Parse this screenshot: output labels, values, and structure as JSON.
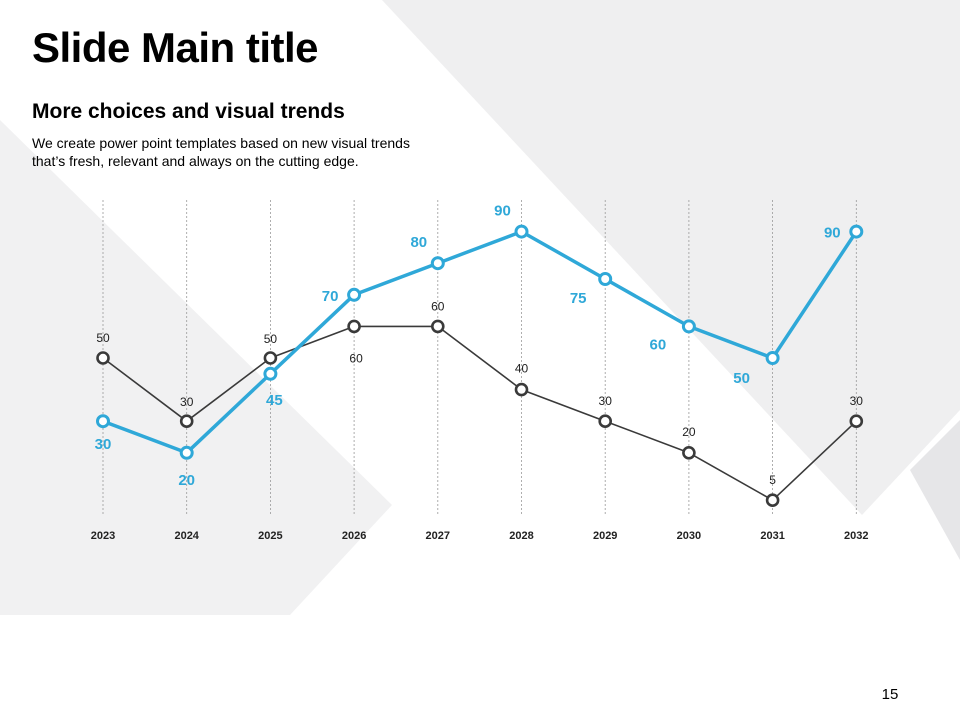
{
  "slide": {
    "title": "Slide Main title",
    "subtitle": "More choices and visual trends",
    "description_line1": "We create power point templates based on new visual trends",
    "description_line2": "that’s fresh, relevant and always on the cutting edge.",
    "page_number": "15"
  },
  "colors": {
    "blue": "#2fa8d8",
    "dark": "#3a3a3a",
    "background_shape": "#efeff0"
  },
  "chart_data": {
    "type": "line",
    "categories": [
      "2023",
      "2024",
      "2025",
      "2026",
      "2027",
      "2028",
      "2029",
      "2030",
      "2031",
      "2032"
    ],
    "series": [
      {
        "values": [
          30,
          20,
          45,
          70,
          80,
          90,
          75,
          60,
          50,
          90
        ],
        "color": "#2fa8d8"
      },
      {
        "values": [
          50,
          30,
          50,
          60,
          60,
          40,
          30,
          20,
          5,
          30
        ],
        "color": "#3a3a3a"
      }
    ],
    "data_labels": "shown",
    "ylim": [
      0,
      100
    ],
    "grid": "vertical dashed",
    "legend": "none"
  }
}
